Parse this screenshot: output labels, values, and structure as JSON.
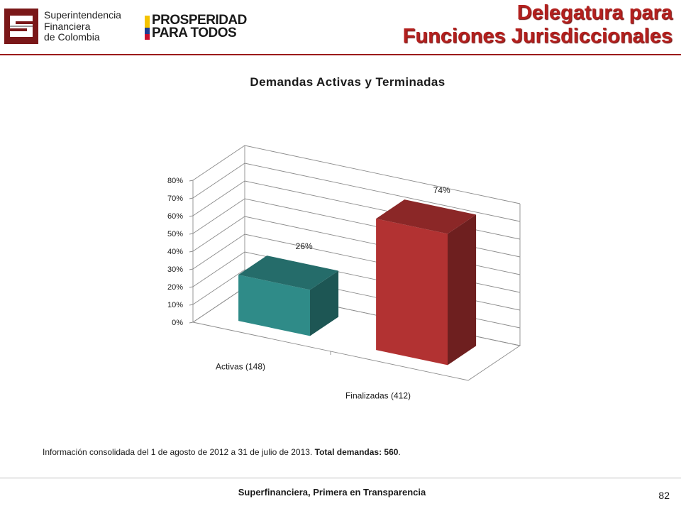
{
  "header": {
    "org_logo_text": [
      "Superintendencia",
      "Financiera",
      "de Colombia"
    ],
    "program_logo_text": [
      "PROSPERIDAD",
      "PARA TODOS"
    ],
    "banner_line1": "Delegatura para",
    "banner_line2": "Funciones Jurisdiccionales",
    "accent_color": "#b3201e"
  },
  "chart_data": {
    "type": "bar",
    "title": "Demandas Activas y Terminadas",
    "categories": [
      "Activas (148)",
      "Finalizadas (412)"
    ],
    "values": [
      26,
      74
    ],
    "data_labels": [
      "26%",
      "74%"
    ],
    "bar_colors": [
      "#2f8b88",
      "#b23232"
    ],
    "y_ticks": [
      "0%",
      "10%",
      "20%",
      "30%",
      "40%",
      "50%",
      "60%",
      "70%",
      "80%"
    ],
    "ylim": [
      0,
      80
    ],
    "grid": true,
    "style": "3d-column",
    "legend": "none"
  },
  "note": {
    "text": "Información consolidada del  1 de agosto de 2012 a  31 de julio de 2013. ",
    "bold": "Total demandas: 560",
    "end": "."
  },
  "footer": {
    "text": "Superfinanciera, Primera en Transparencia",
    "page_number": "82"
  }
}
